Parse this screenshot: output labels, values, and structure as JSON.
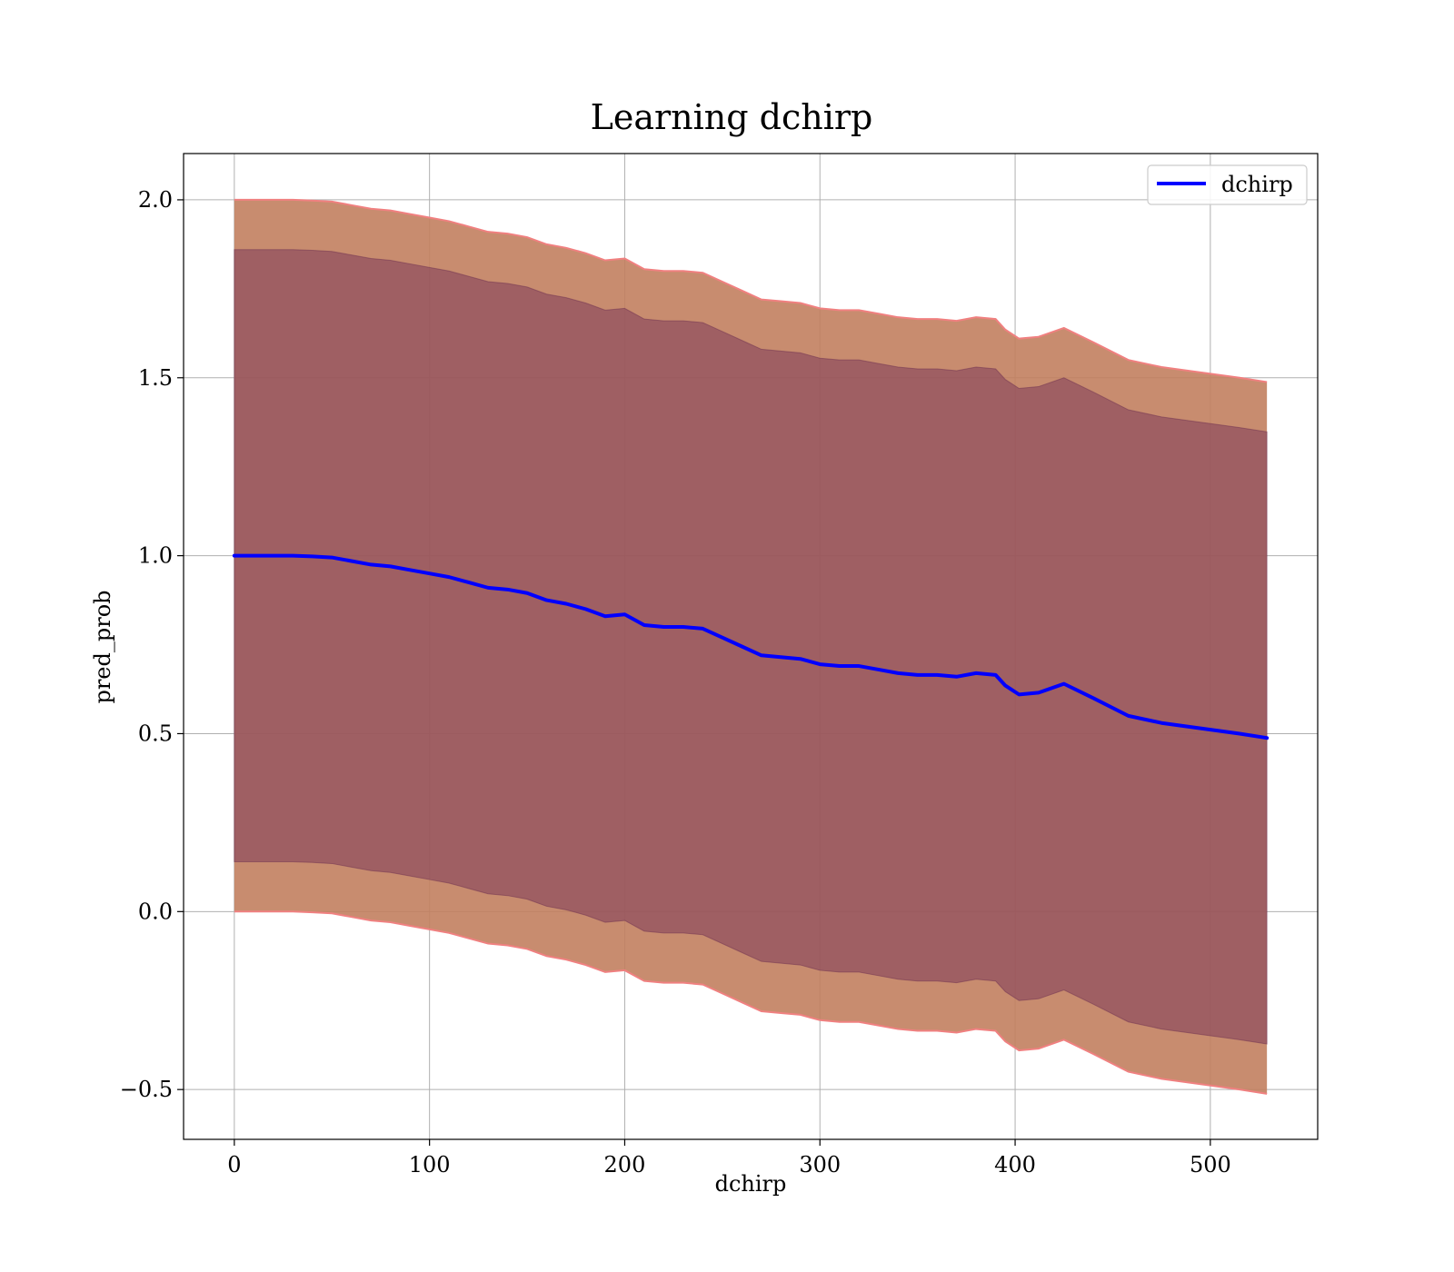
{
  "chart_data": {
    "type": "line",
    "title": "Learning dchirp",
    "xlabel": "dchirp",
    "ylabel": "pred_prob",
    "xlim": [
      -26,
      555
    ],
    "ylim": [
      -0.64,
      2.13
    ],
    "xticks": [
      0,
      100,
      200,
      300,
      400,
      500
    ],
    "xtick_labels": [
      "0",
      "100",
      "200",
      "300",
      "400",
      "500"
    ],
    "yticks": [
      -0.5,
      0.0,
      0.5,
      1.0,
      1.5,
      2.0
    ],
    "ytick_labels": [
      "−0.5",
      "0.0",
      "0.5",
      "1.0",
      "1.5",
      "2.0"
    ],
    "grid": true,
    "legend_position": "top-right",
    "series": [
      {
        "name": "dchirp",
        "color": "#0000ff",
        "x": [
          0,
          10,
          20,
          30,
          40,
          50,
          60,
          70,
          80,
          90,
          100,
          110,
          120,
          130,
          140,
          150,
          160,
          170,
          180,
          190,
          200,
          210,
          220,
          230,
          240,
          250,
          260,
          270,
          280,
          290,
          300,
          310,
          320,
          330,
          340,
          350,
          360,
          370,
          380,
          390,
          395,
          402,
          412,
          425,
          440,
          458,
          475,
          495,
          515,
          529
        ],
        "y": [
          1.0,
          1.0,
          1.0,
          1.0,
          0.998,
          0.995,
          0.985,
          0.975,
          0.97,
          0.96,
          0.95,
          0.94,
          0.925,
          0.91,
          0.905,
          0.895,
          0.875,
          0.865,
          0.85,
          0.83,
          0.835,
          0.805,
          0.8,
          0.8,
          0.795,
          0.77,
          0.745,
          0.72,
          0.715,
          0.71,
          0.695,
          0.69,
          0.69,
          0.68,
          0.67,
          0.665,
          0.665,
          0.66,
          0.67,
          0.665,
          0.635,
          0.61,
          0.615,
          0.64,
          0.6,
          0.55,
          0.53,
          0.515,
          0.5,
          0.488
        ]
      }
    ],
    "bands": [
      {
        "kind": "inner band",
        "color": "#8b3a55",
        "lower": [
          0.14,
          0.14,
          0.14,
          0.14,
          0.138,
          0.135,
          0.125,
          0.115,
          0.11,
          0.1,
          0.09,
          0.08,
          0.065,
          0.05,
          0.045,
          0.035,
          0.015,
          0.005,
          -0.01,
          -0.03,
          -0.025,
          -0.055,
          -0.06,
          -0.06,
          -0.065,
          -0.09,
          -0.115,
          -0.14,
          -0.145,
          -0.15,
          -0.165,
          -0.17,
          -0.17,
          -0.18,
          -0.19,
          -0.195,
          -0.195,
          -0.2,
          -0.19,
          -0.195,
          -0.225,
          -0.25,
          -0.245,
          -0.22,
          -0.26,
          -0.31,
          -0.33,
          -0.345,
          -0.36,
          -0.372
        ],
        "upper": [
          1.86,
          1.86,
          1.86,
          1.86,
          1.858,
          1.855,
          1.845,
          1.835,
          1.83,
          1.82,
          1.81,
          1.8,
          1.785,
          1.77,
          1.765,
          1.755,
          1.735,
          1.725,
          1.71,
          1.69,
          1.695,
          1.665,
          1.66,
          1.66,
          1.655,
          1.63,
          1.605,
          1.58,
          1.575,
          1.57,
          1.555,
          1.55,
          1.55,
          1.54,
          1.53,
          1.525,
          1.525,
          1.52,
          1.53,
          1.525,
          1.495,
          1.47,
          1.475,
          1.5,
          1.46,
          1.41,
          1.39,
          1.375,
          1.36,
          1.348
        ]
      },
      {
        "kind": "outer band",
        "color": "#c2805f",
        "lower": [
          0.0,
          0.0,
          0.0,
          0.0,
          -0.002,
          -0.005,
          -0.015,
          -0.025,
          -0.03,
          -0.04,
          -0.05,
          -0.06,
          -0.075,
          -0.09,
          -0.095,
          -0.105,
          -0.125,
          -0.135,
          -0.15,
          -0.17,
          -0.165,
          -0.195,
          -0.2,
          -0.2,
          -0.205,
          -0.23,
          -0.255,
          -0.28,
          -0.285,
          -0.29,
          -0.305,
          -0.31,
          -0.31,
          -0.32,
          -0.33,
          -0.335,
          -0.335,
          -0.34,
          -0.33,
          -0.335,
          -0.365,
          -0.39,
          -0.385,
          -0.36,
          -0.4,
          -0.45,
          -0.47,
          -0.485,
          -0.5,
          -0.512
        ],
        "upper": [
          2.0,
          2.0,
          2.0,
          2.0,
          1.998,
          1.995,
          1.985,
          1.975,
          1.97,
          1.96,
          1.95,
          1.94,
          1.925,
          1.91,
          1.905,
          1.895,
          1.875,
          1.865,
          1.85,
          1.83,
          1.835,
          1.805,
          1.8,
          1.8,
          1.795,
          1.77,
          1.745,
          1.72,
          1.715,
          1.71,
          1.695,
          1.69,
          1.69,
          1.68,
          1.67,
          1.665,
          1.665,
          1.66,
          1.67,
          1.665,
          1.635,
          1.61,
          1.615,
          1.64,
          1.6,
          1.55,
          1.53,
          1.515,
          1.5,
          1.488
        ]
      }
    ]
  }
}
